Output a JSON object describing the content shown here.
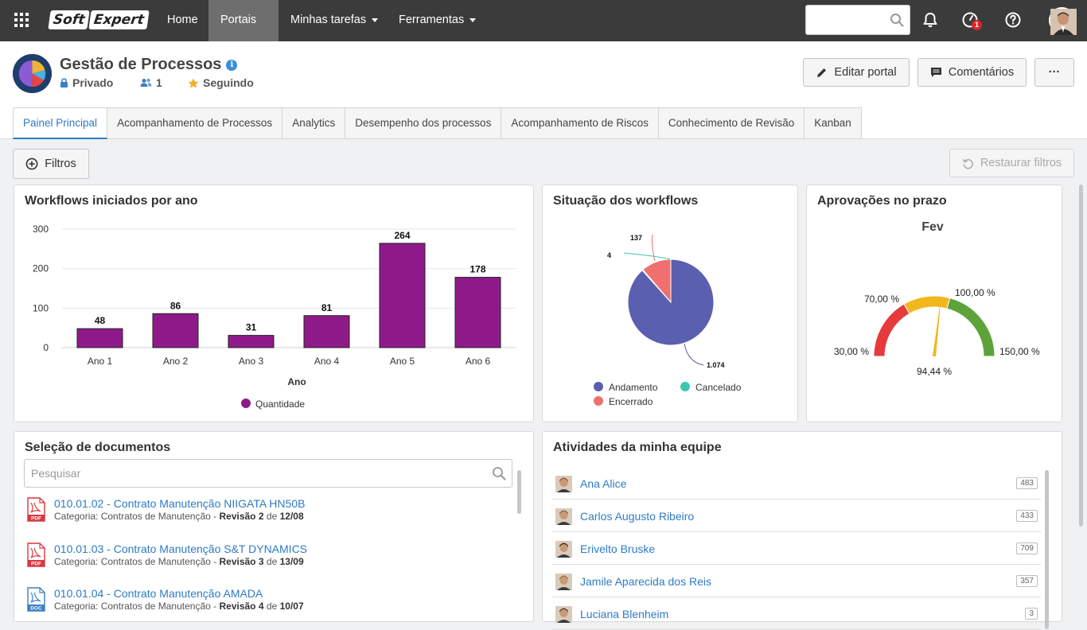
{
  "topnav": {
    "logo_part1": "Soft",
    "logo_part2": "Expert",
    "items": [
      {
        "label": "Home"
      },
      {
        "label": "Portais"
      },
      {
        "label": "Minhas tarefas"
      },
      {
        "label": "Ferramentas"
      }
    ],
    "notification_badge": "1"
  },
  "header": {
    "title": "Gestão de Processos",
    "privacy": "Privado",
    "members": "1",
    "following": "Seguindo",
    "edit_label": "Editar portal",
    "comments_label": "Comentários",
    "more_label": "···"
  },
  "tabs": [
    {
      "label": "Painel Principal"
    },
    {
      "label": "Acompanhamento de Processos"
    },
    {
      "label": "Analytics"
    },
    {
      "label": "Desempenho dos processos"
    },
    {
      "label": "Acompanhamento de Riscos"
    },
    {
      "label": "Conhecimento de Revisão"
    },
    {
      "label": "Kanban"
    }
  ],
  "filters": {
    "filter_label": "Filtros",
    "restore_label": "Restaurar filtros"
  },
  "workflows_chart": {
    "title": "Workflows iniciados por ano",
    "chart_data": {
      "type": "bar",
      "categories": [
        "Ano 1",
        "Ano 2",
        "Ano 3",
        "Ano 4",
        "Ano 5",
        "Ano 6"
      ],
      "values": [
        48,
        86,
        31,
        81,
        264,
        178
      ],
      "xlabel": "Ano",
      "ylabel": "",
      "ylim": [
        0,
        300
      ],
      "yticks": [
        0,
        100,
        200,
        300
      ],
      "legend": "Quantidade",
      "color": "#8e1a8a"
    }
  },
  "situacao_chart": {
    "title": "Situação dos workflows",
    "chart_data": {
      "type": "pie",
      "labels": [
        "Andamento",
        "Cancelado",
        "Encerrado"
      ],
      "values": [
        1074,
        4,
        137
      ],
      "value_labels": [
        "1.074",
        "4",
        "137"
      ],
      "colors": [
        "#5b5fb0",
        "#3cc6b0",
        "#f07070"
      ]
    }
  },
  "aprovacoes_gauge": {
    "title": "Aprovações no prazo",
    "subtitle": "Fev",
    "min_label": "30,00 %",
    "band1_label": "70,00 %",
    "band2_label": "100,00 %",
    "max_label": "150,00 %",
    "value_label": "94,44 %",
    "min": 30,
    "max": 150,
    "value": 94.44,
    "bands": [
      {
        "from": 30,
        "to": 70,
        "color": "#e63b3b"
      },
      {
        "from": 70,
        "to": 100,
        "color": "#f2b71c"
      },
      {
        "from": 100,
        "to": 150,
        "color": "#5ea33a"
      }
    ]
  },
  "documents": {
    "title": "Seleção de documentos",
    "search_placeholder": "Pesquisar",
    "category_prefix": "Categoria:",
    "revision_word": "Revisão",
    "of_word": "de",
    "items": [
      {
        "title": "010.01.02 - Contrato Manutenção NIIGATA HN50B",
        "category": "Contratos de Manutenção",
        "revision": "2",
        "date": "12/08",
        "icon": "pdf-icon"
      },
      {
        "title": "010.01.03 - Contrato Manutenção S&T DYNAMICS",
        "category": "Contratos de Manutenção",
        "revision": "3",
        "date": "13/09",
        "icon": "pdf-icon"
      },
      {
        "title": "010.01.04 - Contrato Manutenção AMADA",
        "category": "Contratos de Manutenção",
        "revision": "4",
        "date": "10/07",
        "icon": "doc-icon"
      }
    ]
  },
  "team": {
    "title": "Atividades da minha equipe",
    "members": [
      {
        "name": "Ana Alice",
        "count": "483"
      },
      {
        "name": "Carlos Augusto Ribeiro",
        "count": "433"
      },
      {
        "name": "Erivelto Bruske",
        "count": "709"
      },
      {
        "name": "Jamile Aparecida dos Reis",
        "count": "357"
      },
      {
        "name": "Luciana Blenheim",
        "count": "3"
      }
    ]
  }
}
